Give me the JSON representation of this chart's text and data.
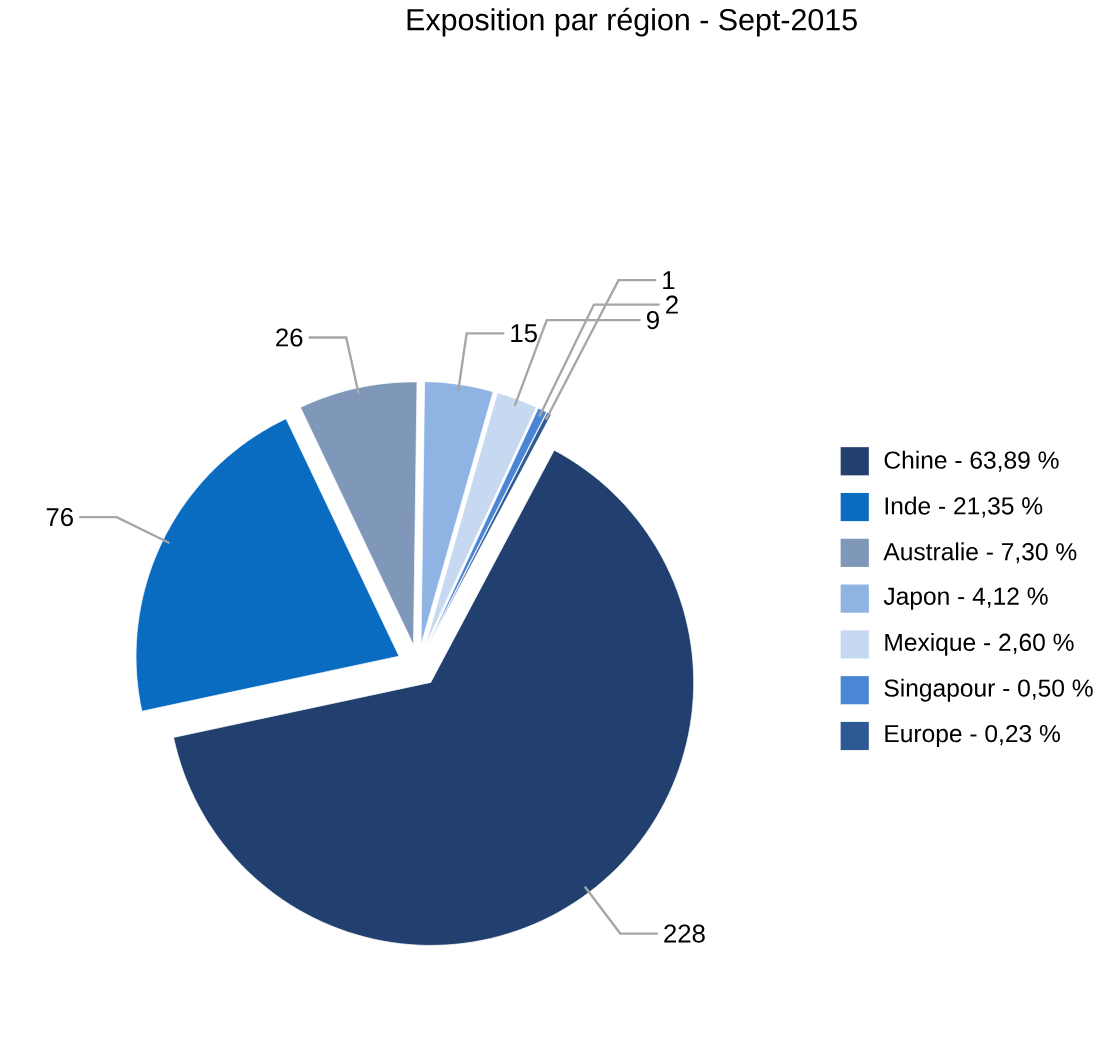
{
  "chart_data": {
    "type": "pie",
    "title": "Exposition par région - Sept-2015",
    "categories": [
      "Chine - 63,89 %",
      "Inde - 21,35 %",
      "Australie - 7,30 %",
      "Japon - 4,12 %",
      "Mexique - 2,60 %",
      "Singapour - 0,50 %",
      "Europe - 0,23 %"
    ],
    "values": [
      228,
      76,
      26,
      15,
      9,
      2,
      1
    ],
    "colors": [
      "#22406f",
      "#0a6cc0",
      "#7f97b8",
      "#8fb4e3",
      "#c6d9f1",
      "#4a86d4",
      "#2e5a94"
    ],
    "data_labels": true,
    "legend": "right"
  }
}
